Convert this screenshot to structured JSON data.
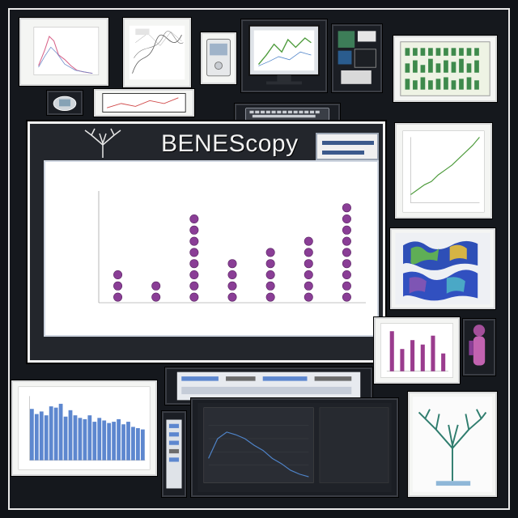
{
  "board": {
    "title": "BENEScopy",
    "side_text": "",
    "footer_text": "",
    "footer_left": ""
  },
  "main_chart_panel": {
    "title": "",
    "ylabel": "",
    "xlabel": ""
  },
  "chart_data": [
    {
      "type": "scatter",
      "title": "",
      "xlabel": "",
      "ylabel": "",
      "categories": [
        "",
        "",
        "",
        "",
        "",
        "",
        ""
      ],
      "values": [
        3,
        2,
        8,
        4,
        5,
        6,
        9
      ],
      "ylim": [
        0,
        10
      ],
      "grid": false,
      "series_color": "#8a3e96"
    },
    {
      "type": "bar",
      "title": "",
      "categories": [
        "",
        "",
        "",
        "",
        "",
        "",
        "",
        "",
        "",
        "",
        "",
        "",
        "",
        "",
        "",
        "",
        "",
        "",
        "",
        "",
        "",
        "",
        "",
        ""
      ],
      "values": [
        0.8,
        0.72,
        0.76,
        0.7,
        0.84,
        0.82,
        0.88,
        0.68,
        0.78,
        0.7,
        0.66,
        0.64,
        0.7,
        0.6,
        0.66,
        0.62,
        0.58,
        0.6,
        0.64,
        0.56,
        0.6,
        0.52,
        0.5,
        0.48
      ],
      "series_color": "#5d87cf",
      "ylim": [
        0,
        1
      ]
    },
    {
      "type": "line",
      "title": "",
      "x": [
        0,
        1,
        2,
        3,
        4,
        5,
        6,
        7,
        8,
        9,
        10
      ],
      "values": [
        1,
        1.6,
        2.2,
        2.6,
        3.4,
        4.0,
        4.6,
        5.4,
        6.2,
        7.0,
        8.0
      ],
      "series_color": "#4c9a3a"
    },
    {
      "type": "bar",
      "title": "",
      "categories": [
        "",
        "",
        "",
        "",
        "",
        ""
      ],
      "values": [
        0.9,
        0.5,
        0.7,
        0.6,
        0.8,
        0.4
      ],
      "series_color": "#9a3c8e"
    },
    {
      "type": "line",
      "title": "",
      "x": [
        0,
        1,
        2,
        3,
        4,
        5,
        6,
        7,
        8,
        9,
        10,
        11
      ],
      "values": [
        0.3,
        0.6,
        0.7,
        0.66,
        0.6,
        0.5,
        0.42,
        0.3,
        0.22,
        0.12,
        0.06,
        0.02
      ],
      "series_color": "#4f84c9"
    }
  ],
  "colors": {
    "background": "#101318",
    "board": "#23262c",
    "panel": "#ffffff",
    "accent_purple": "#8a3e96",
    "accent_blue": "#4f84c9",
    "accent_green": "#4c9a3a"
  },
  "icons": {
    "monitor": "monitor-icon",
    "tree": "tree-icon",
    "keyboard": "keyboard-icon"
  }
}
